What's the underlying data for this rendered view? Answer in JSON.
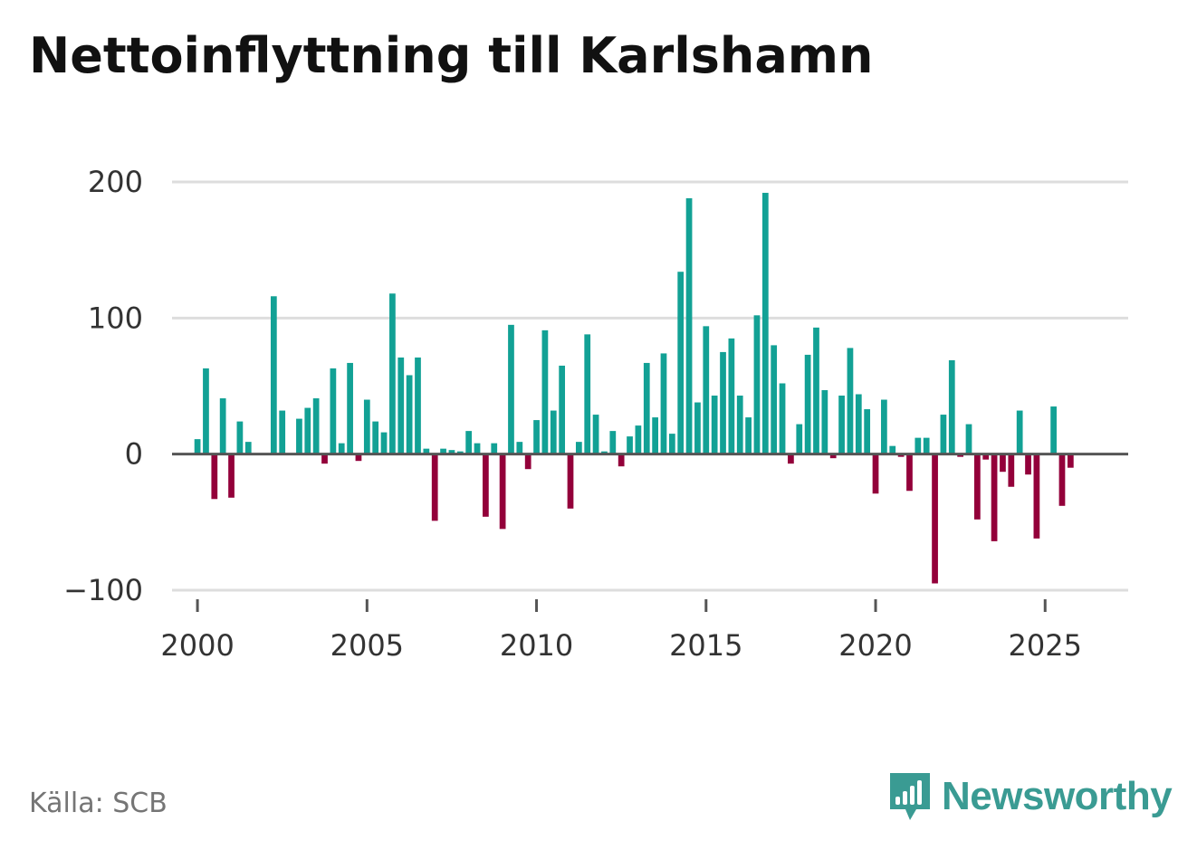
{
  "title": "Nettoinflyttning till Karlshamn",
  "source": "Källa: SCB",
  "logo": {
    "text": "Newsworthy",
    "icon": "newsworthy-bar-chart-icon"
  },
  "colors": {
    "positive": "#12a195",
    "negative": "#93003a",
    "grid": "#dddddd",
    "zero_line": "#555555",
    "brand": "#3a9b93"
  },
  "chart_data": {
    "type": "bar",
    "title": "Nettoinflyttning till Karlshamn",
    "xlabel": "",
    "ylabel": "",
    "frequency": "quarterly",
    "start_period": "2000 Q1",
    "xlim": [
      1999.25,
      2027.45
    ],
    "ylim": [
      -100,
      200
    ],
    "x_ticks": [
      2000,
      2005,
      2010,
      2015,
      2020,
      2025
    ],
    "y_ticks": [
      -100,
      0,
      100,
      200
    ],
    "y_tick_labels": [
      "−100",
      "0",
      "100",
      "200"
    ],
    "grid": true,
    "values": [
      11,
      63,
      -33,
      41,
      -32,
      24,
      9,
      0,
      0,
      116,
      32,
      0,
      26,
      34,
      41,
      -7,
      63,
      8,
      67,
      -5,
      40,
      24,
      16,
      118,
      71,
      58,
      71,
      4,
      -49,
      4,
      3,
      2,
      17,
      8,
      -46,
      8,
      -55,
      95,
      9,
      -11,
      25,
      91,
      32,
      65,
      -40,
      9,
      88,
      29,
      2,
      17,
      -9,
      13,
      21,
      67,
      27,
      74,
      15,
      134,
      188,
      38,
      94,
      43,
      75,
      85,
      43,
      27,
      102,
      192,
      80,
      52,
      -7,
      22,
      73,
      93,
      47,
      -3,
      43,
      78,
      44,
      33,
      -29,
      40,
      6,
      -2,
      -27,
      12,
      12,
      -95,
      29,
      69,
      -2,
      22,
      -48,
      -4,
      -64,
      -13,
      -24,
      32,
      -15,
      -62,
      0,
      35,
      -38,
      -10
    ]
  }
}
